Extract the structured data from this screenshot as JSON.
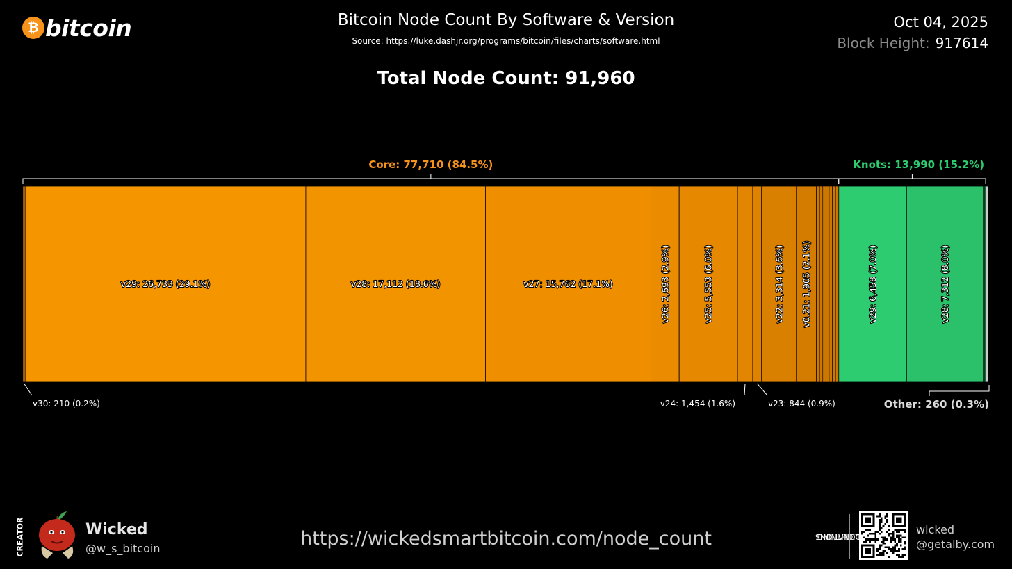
{
  "header": {
    "logo_text": "bitcoin",
    "logo_icon": "bitcoin-coin-icon",
    "logo_symbol": "₿",
    "title": "Bitcoin Node Count By Software & Version",
    "source": "Source: https://luke.dashjr.org/programs/bitcoin/files/charts/software.html",
    "date": "Oct 04, 2025",
    "block_height_label": "Block Height:",
    "block_height_value": "917614",
    "total_label": "Total Node Count: 91,960"
  },
  "chart_data": {
    "type": "bar",
    "orientation": "horizontal-stacked",
    "total": 91960,
    "groups": [
      {
        "name": "Core",
        "label": "Core: 77,710 (84.5%)",
        "value": 77710,
        "percent": 84.5,
        "color": "#f7931a"
      },
      {
        "name": "Knots",
        "label": "Knots: 13,990 (15.2%)",
        "value": 13990,
        "percent": 15.2,
        "color": "#2ecc71"
      }
    ],
    "segments": [
      {
        "group": "Core",
        "version": "v30",
        "value": 210,
        "percent": 0.2,
        "label": "v30:  210 (0.2%)",
        "placement": "outside",
        "color": "#f7931a"
      },
      {
        "group": "Core",
        "version": "v29",
        "value": 26733,
        "percent": 29.1,
        "label": "v29:  26,733 (29.1%)",
        "placement": "horizontal",
        "color": "#f59500"
      },
      {
        "group": "Core",
        "version": "v28",
        "value": 17112,
        "percent": 18.6,
        "label": "v28:  17,112 (18.6%)",
        "placement": "horizontal",
        "color": "#f29300"
      },
      {
        "group": "Core",
        "version": "v27",
        "value": 15762,
        "percent": 17.1,
        "label": "v27:  15,762 (17.1%)",
        "placement": "horizontal",
        "color": "#ef8f00"
      },
      {
        "group": "Core",
        "version": "v26",
        "value": 2693,
        "percent": 2.9,
        "label": "v26:  2,693 (2.9%)",
        "placement": "vertical",
        "color": "#ea8b00"
      },
      {
        "group": "Core",
        "version": "v25",
        "value": 5553,
        "percent": 6.0,
        "label": "v25:  5,553 (6.0%)",
        "placement": "vertical",
        "color": "#e68800"
      },
      {
        "group": "Core",
        "version": "v24",
        "value": 1454,
        "percent": 1.6,
        "label": "v24:  1,454 (1.6%)",
        "placement": "outside",
        "color": "#e28500"
      },
      {
        "group": "Core",
        "version": "v23",
        "value": 844,
        "percent": 0.9,
        "label": "v23:  844 (0.9%)",
        "placement": "outside",
        "color": "#de8200"
      },
      {
        "group": "Core",
        "version": "v22",
        "value": 3314,
        "percent": 3.6,
        "label": "v22:  3,314 (3.6%)",
        "placement": "vertical",
        "color": "#d98000"
      },
      {
        "group": "Core",
        "version": "v0.21",
        "value": 1905,
        "percent": 2.1,
        "label": "v0.21:  1,905 (2.1%)",
        "placement": "vertical",
        "color": "#d37c00"
      },
      {
        "group": "Core",
        "version": "older",
        "value": 2130,
        "percent": 2.3,
        "label": "",
        "placement": "none",
        "color": "#cc7700",
        "slivers": 7
      },
      {
        "group": "Knots",
        "version": "v29",
        "value": 6458,
        "percent": 7.0,
        "label": "v29:  6,458 (7.0%)",
        "placement": "vertical",
        "color": "#2ecc71"
      },
      {
        "group": "Knots",
        "version": "v28",
        "value": 7312,
        "percent": 8.0,
        "label": "v28:  7,312 (8.0%)",
        "placement": "vertical",
        "color": "#2bc06a"
      },
      {
        "group": "Knots",
        "version": "older",
        "value": 220,
        "percent": 0.2,
        "label": "",
        "placement": "none",
        "color": "#27b262",
        "slivers": 2
      },
      {
        "group": "Other",
        "version": "other",
        "value": 260,
        "percent": 0.3,
        "label": "",
        "placement": "none",
        "color": "#cccccc"
      }
    ],
    "other_label": "Other: 260 (0.3%)",
    "legend": "none",
    "grid": false
  },
  "footer": {
    "creator_tag": "CREATOR",
    "creator_name": "Wicked",
    "creator_handle": "@w_s_bitcoin",
    "avatar_icon": "apple-face-avatar-icon",
    "site_url": "https://wickedsmartbitcoin.com/node_count",
    "lightning_tag_line1": "LIGHTNING",
    "lightning_tag_line2": "DONATIONS",
    "qr_icon": "qr-code-icon",
    "lightning_user": "wicked",
    "lightning_host": "@getalby.com"
  }
}
